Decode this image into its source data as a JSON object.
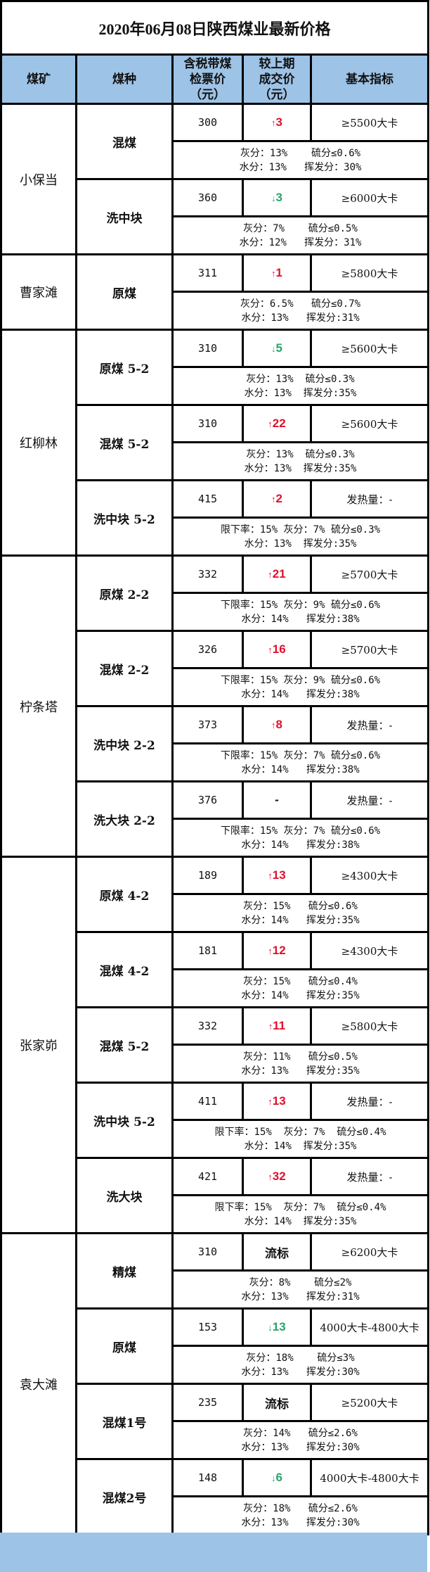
{
  "title": "2020年06月08日陕西煤业最新价格",
  "header": {
    "mine": "煤矿",
    "kind": "煤种",
    "price": [
      "含税带煤",
      "检票价",
      "（元）"
    ],
    "change": [
      "较上期",
      "成交价",
      "（元）"
    ],
    "spec": "基本指标"
  },
  "colors": {
    "header_bg": "#9dc3e6",
    "up": "#e0102a",
    "down": "#2aa36b"
  },
  "mines": [
    {
      "name": "小保当",
      "items": [
        {
          "kind": "混煤",
          "price": "300",
          "change": {
            "dir": "up",
            "arrow": "↑",
            "value": "3"
          },
          "spec": "≥5500大卡",
          "detail": [
            "灰分：13%    硫分≤0.6%",
            "水分：13%   挥发分：30%"
          ]
        },
        {
          "kind": "洗中块",
          "price": "360",
          "change": {
            "dir": "down",
            "arrow": "↓",
            "value": "3"
          },
          "spec": "≥6000大卡",
          "detail": [
            "灰分：7%    硫分≤0.5%",
            "水分：12%   挥发分：31%"
          ]
        }
      ]
    },
    {
      "name": "曹家滩",
      "items": [
        {
          "kind": "原煤",
          "price": "311",
          "change": {
            "dir": "up",
            "arrow": "↑",
            "value": "1"
          },
          "spec": "≥5800大卡",
          "detail": [
            "灰分：6.5%   硫分≤0.7%",
            "水分：13%   挥发分:31%"
          ]
        }
      ]
    },
    {
      "name": "红柳林",
      "items": [
        {
          "kind": "原煤 5-2",
          "price": "310",
          "change": {
            "dir": "down",
            "arrow": "↓",
            "value": "5"
          },
          "spec": "≥5600大卡",
          "detail": [
            "灰分：13%  硫分≤0.3%",
            "水分：13%  挥发分:35%"
          ]
        },
        {
          "kind": "混煤 5-2",
          "price": "310",
          "change": {
            "dir": "up",
            "arrow": "↑",
            "value": "22"
          },
          "spec": "≥5600大卡",
          "detail": [
            "灰分：13%  硫分≤0.3%",
            "水分：13%  挥发分:35%"
          ]
        },
        {
          "kind": "洗中块 5-2",
          "price": "415",
          "change": {
            "dir": "up",
            "arrow": "↑",
            "value": "2"
          },
          "spec": "发热量：-",
          "detail": [
            "限下率：15% 灰分：7% 硫分≤0.3%",
            "水分：13%  挥发分:35%"
          ]
        }
      ]
    },
    {
      "name": "柠条塔",
      "items": [
        {
          "kind": "原煤 2-2",
          "price": "332",
          "change": {
            "dir": "up",
            "arrow": "↑",
            "value": "21"
          },
          "spec": "≥5700大卡",
          "detail": [
            "下限率：15% 灰分：9% 硫分≤0.6%",
            "水分：14%   挥发分:38%"
          ]
        },
        {
          "kind": "混煤 2-2",
          "price": "326",
          "change": {
            "dir": "up",
            "arrow": "↑",
            "value": "16"
          },
          "spec": "≥5700大卡",
          "detail": [
            "下限率：15% 灰分：9% 硫分≤0.6%",
            "水分：14%   挥发分:38%"
          ]
        },
        {
          "kind": "洗中块 2-2",
          "price": "373",
          "change": {
            "dir": "up",
            "arrow": "↑",
            "value": "8"
          },
          "spec": "发热量：-",
          "detail": [
            "下限率：15% 灰分：7% 硫分≤0.6%",
            "水分：14%   挥发分:38%"
          ]
        },
        {
          "kind": "洗大块 2-2",
          "price": "376",
          "change": {
            "dir": "flat",
            "arrow": "",
            "value": "-"
          },
          "spec": "发热量：-",
          "detail": [
            "下限率：15% 灰分：7% 硫分≤0.6%",
            "水分：14%   挥发分:38%"
          ]
        }
      ]
    },
    {
      "name": "张家峁",
      "items": [
        {
          "kind": "原煤 4-2",
          "price": "189",
          "change": {
            "dir": "up",
            "arrow": "↑",
            "value": "13"
          },
          "spec": "≥4300大卡",
          "detail": [
            "灰分：15%   硫分≤0.6%",
            "水分：14%   挥发分:35%"
          ]
        },
        {
          "kind": "混煤 4-2",
          "price": "181",
          "change": {
            "dir": "up",
            "arrow": "↑",
            "value": "12"
          },
          "spec": "≥4300大卡",
          "detail": [
            "灰分：15%   硫分≤0.4%",
            "水分：14%   挥发分:35%"
          ]
        },
        {
          "kind": "混煤 5-2",
          "price": "332",
          "change": {
            "dir": "up",
            "arrow": "↑",
            "value": "11"
          },
          "spec": "≥5800大卡",
          "detail": [
            "灰分：11%   硫分≤0.5%",
            "水分：13%   挥发分:35%"
          ]
        },
        {
          "kind": "洗中块 5-2",
          "price": "411",
          "change": {
            "dir": "up",
            "arrow": "↑",
            "value": "13"
          },
          "spec": "发热量：-",
          "detail": [
            "限下率：15%  灰分：7%  硫分≤0.4%",
            "水分：14%  挥发分:35%"
          ]
        },
        {
          "kind": "洗大块",
          "price": "421",
          "change": {
            "dir": "up",
            "arrow": "↑",
            "value": "32"
          },
          "spec": "发热量：-",
          "detail": [
            "限下率：15%  灰分：7%  硫分≤0.4%",
            "水分：14%  挥发分:35%"
          ]
        }
      ]
    },
    {
      "name": "袁大滩",
      "items": [
        {
          "kind": "精煤",
          "price": "310",
          "change": {
            "dir": "flat",
            "arrow": "",
            "value": "流标"
          },
          "spec": "≥6200大卡",
          "detail": [
            "灰分：8%    硫分≤2%",
            "水分：13%   挥发分:31%"
          ]
        },
        {
          "kind": "原煤",
          "price": "153",
          "change": {
            "dir": "down",
            "arrow": "↓",
            "value": "13"
          },
          "spec": "4000大卡-4800大卡",
          "detail": [
            "灰分：18%    硫分≤3%",
            "水分：13%   挥发分:30%"
          ]
        },
        {
          "kind": "混煤1号",
          "price": "235",
          "change": {
            "dir": "flat",
            "arrow": "",
            "value": "流标"
          },
          "spec": "≥5200大卡",
          "detail": [
            "灰分：14%   硫分≤2.6%",
            "水分：13%   挥发分:30%"
          ]
        },
        {
          "kind": "混煤2号",
          "price": "148",
          "change": {
            "dir": "down",
            "arrow": "↓",
            "value": "6"
          },
          "spec": "4000大卡-4800大卡",
          "detail": [
            "灰分：18%   硫分≤2.6%",
            "水分：13%   挥发分:30%"
          ]
        }
      ]
    }
  ]
}
